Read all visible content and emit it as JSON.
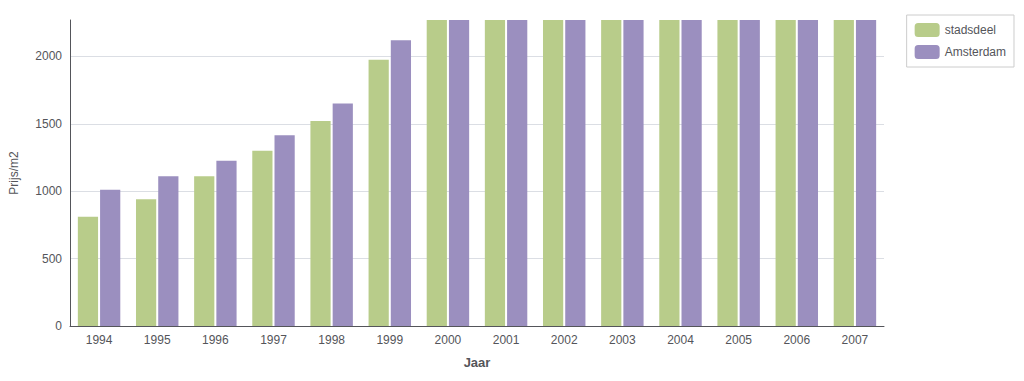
{
  "chart_data": {
    "type": "bar",
    "categories": [
      "1994",
      "1995",
      "1996",
      "1997",
      "1998",
      "1999",
      "2000",
      "2001",
      "2002",
      "2003",
      "2004",
      "2005",
      "2006",
      "2007"
    ],
    "series": [
      {
        "name": "stadsdeel",
        "color": "#b8cc8a",
        "values": [
          810,
          940,
          1110,
          1300,
          1520,
          1975,
          2270,
          2270,
          2270,
          2270,
          2270,
          2270,
          2270,
          2270
        ]
      },
      {
        "name": "Amsterdam",
        "color": "#9b8fbf",
        "values": [
          1010,
          1110,
          1225,
          1415,
          1650,
          2120,
          2270,
          2270,
          2270,
          2270,
          2270,
          2270,
          2270,
          2270
        ]
      }
    ],
    "xlabel": "Jaar",
    "ylabel": "Prijs/m2",
    "ylim": [
      0,
      2270
    ],
    "yticks": [
      0,
      500,
      1000,
      1500,
      2000
    ],
    "grid": true,
    "legend": "upper right"
  }
}
